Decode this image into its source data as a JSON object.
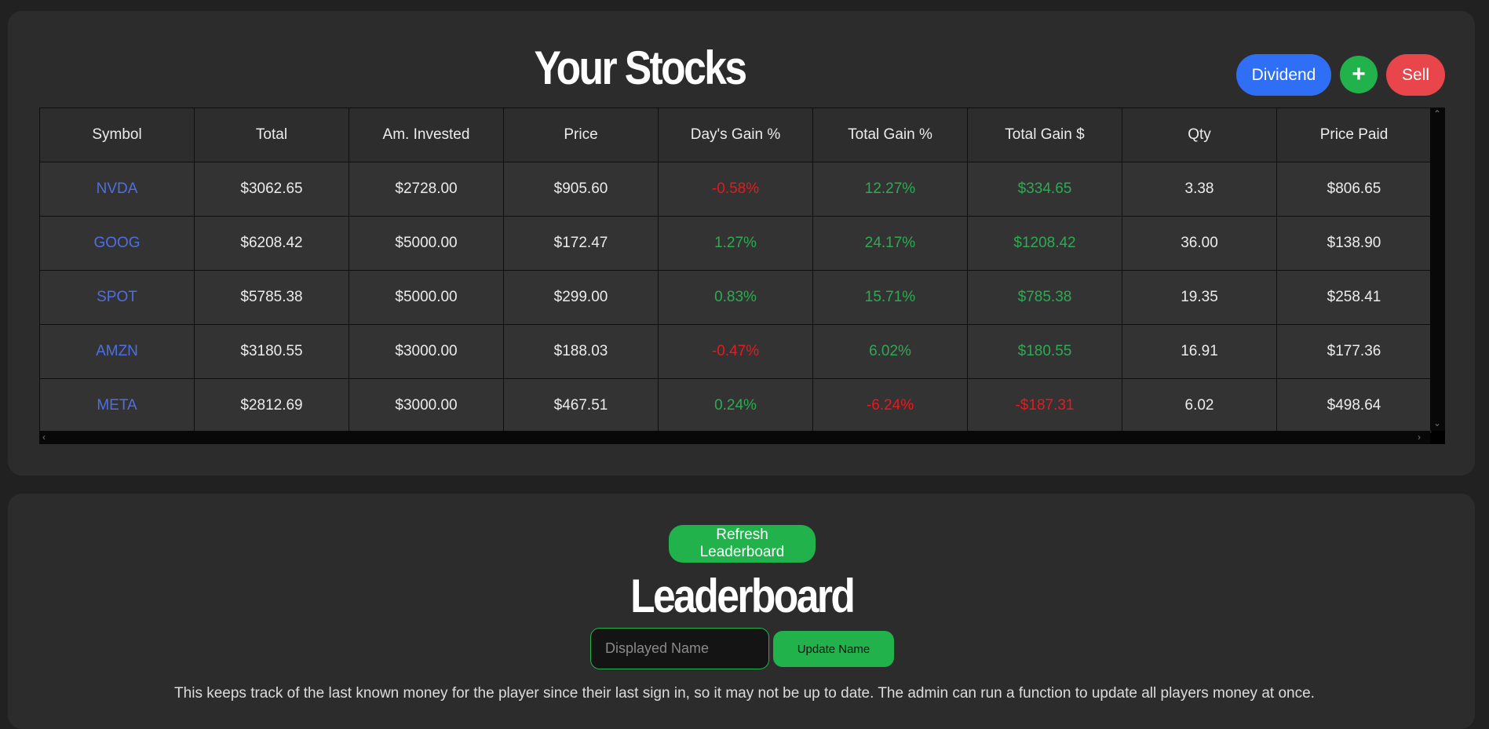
{
  "stocks": {
    "title": "Your Stocks",
    "buttons": {
      "dividend": "Dividend",
      "add": "+",
      "sell": "Sell"
    },
    "columns": [
      "Symbol",
      "Total",
      "Am. Invested",
      "Price",
      "Day's Gain %",
      "Total Gain %",
      "Total Gain $",
      "Qty",
      "Price Paid"
    ],
    "rows": [
      [
        "NVDA",
        "$3062.65",
        "$2728.00",
        "$905.60",
        "-0.58%",
        "12.27%",
        "$334.65",
        "3.38",
        "$806.65"
      ],
      [
        "GOOG",
        "$6208.42",
        "$5000.00",
        "$172.47",
        "1.27%",
        "24.17%",
        "$1208.42",
        "36.00",
        "$138.90"
      ],
      [
        "SPOT",
        "$5785.38",
        "$5000.00",
        "$299.00",
        "0.83%",
        "15.71%",
        "$785.38",
        "19.35",
        "$258.41"
      ],
      [
        "AMZN",
        "$3180.55",
        "$3000.00",
        "$188.03",
        "-0.47%",
        "6.02%",
        "$180.55",
        "16.91",
        "$177.36"
      ],
      [
        "META",
        "$2812.69",
        "$3000.00",
        "$467.51",
        "0.24%",
        "-6.24%",
        "-$187.31",
        "6.02",
        "$498.64"
      ]
    ]
  },
  "leaderboard": {
    "refresh_label": "Refresh Leaderboard",
    "title": "Leaderboard",
    "name_placeholder": "Displayed Name",
    "name_value": "",
    "update_label": "Update Name",
    "note": "This keeps track of the last known money for the player since their last sign in, so it may not be up to date. The admin can run a function to update all players money at once."
  },
  "colors": {
    "positive": "#2eaa52",
    "negative": "#e8191f",
    "symbol_link": "#4f6fe0",
    "accent_green": "#22b24c",
    "accent_blue": "#2e6ff5",
    "accent_red": "#e8464a"
  },
  "icons": {
    "scroll_up": "chevron-up-icon",
    "scroll_down": "chevron-down-icon",
    "scroll_left": "chevron-left-icon",
    "scroll_right": "chevron-right-icon"
  }
}
